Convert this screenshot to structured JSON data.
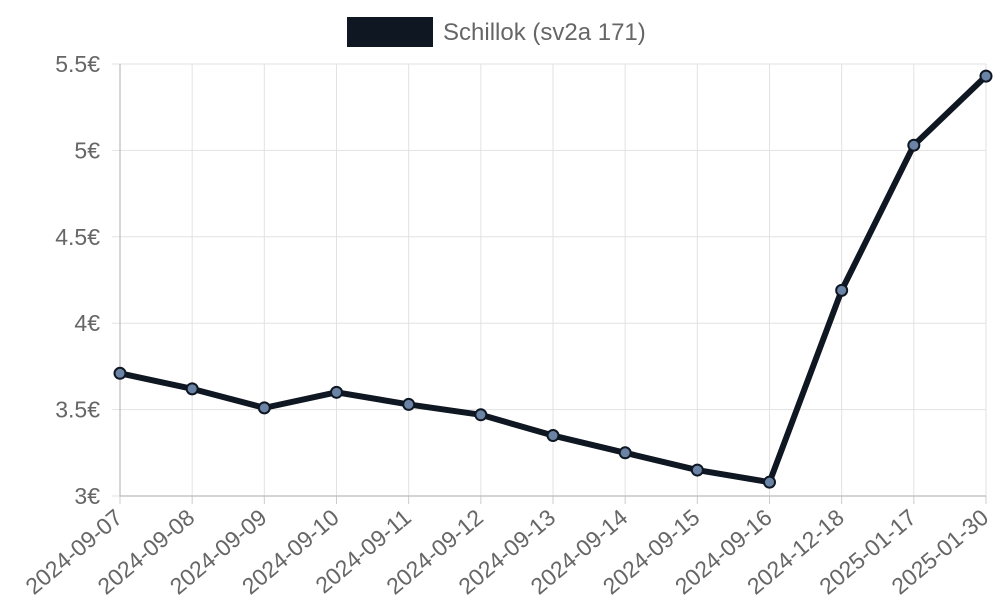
{
  "colors": {
    "series_line": "#0f1722",
    "point_fill": "#6b84a6",
    "legend_swatch": "#0f1722",
    "grid": "#e2e2e2",
    "text": "#666666"
  },
  "chart_data": {
    "type": "line",
    "title": "",
    "xlabel": "",
    "ylabel": "",
    "legend": {
      "position": "top-center",
      "entries": [
        "Schillok (sv2a 171)"
      ]
    },
    "grid": true,
    "ylim": [
      3,
      5.5
    ],
    "y_ticks": [
      3,
      3.5,
      4,
      4.5,
      5,
      5.5
    ],
    "y_tick_labels": [
      "3€",
      "3.5€",
      "4€",
      "4.5€",
      "5€",
      "5.5€"
    ],
    "categories": [
      "2024-09-07",
      "2024-09-08",
      "2024-09-09",
      "2024-09-10",
      "2024-09-11",
      "2024-09-12",
      "2024-09-13",
      "2024-09-14",
      "2024-09-15",
      "2024-09-16",
      "2024-12-18",
      "2025-01-17",
      "2025-01-30"
    ],
    "series": [
      {
        "name": "Schillok (sv2a 171)",
        "values": [
          3.71,
          3.62,
          3.51,
          3.6,
          3.53,
          3.47,
          3.35,
          3.25,
          3.15,
          3.08,
          4.19,
          5.03,
          5.43
        ]
      }
    ]
  }
}
